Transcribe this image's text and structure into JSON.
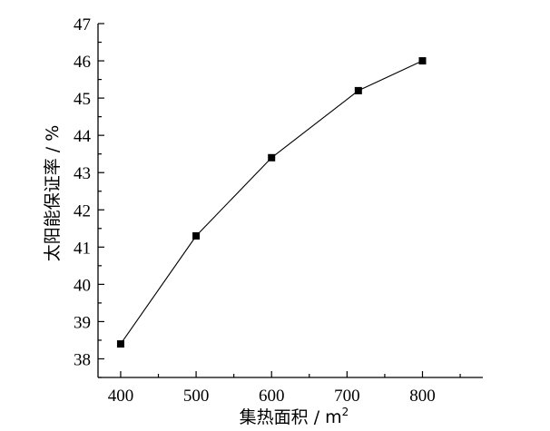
{
  "chart_data": {
    "type": "line",
    "title": "",
    "xlabel": "集热面积 / m",
    "xlabel_superscript": "2",
    "ylabel": "太阳能保证率 / %",
    "x": [
      400,
      500,
      600,
      715,
      800
    ],
    "series": [
      {
        "values": [
          38.4,
          41.3,
          43.4,
          45.2,
          46.0
        ],
        "marker": "square",
        "color": "#000000"
      }
    ],
    "xlim": [
      370,
      880
    ],
    "ylim": [
      37.5,
      47.0
    ],
    "xticks": [
      400,
      500,
      600,
      700,
      800
    ],
    "xtick_labels": [
      "400",
      "500",
      "600",
      "700",
      "800"
    ],
    "yticks": [
      38,
      39,
      40,
      41,
      42,
      43,
      44,
      45,
      46,
      47
    ],
    "ytick_labels": [
      "38",
      "39",
      "40",
      "41",
      "42",
      "43",
      "44",
      "45",
      "46",
      "47"
    ],
    "grid": false,
    "legend": "none"
  }
}
